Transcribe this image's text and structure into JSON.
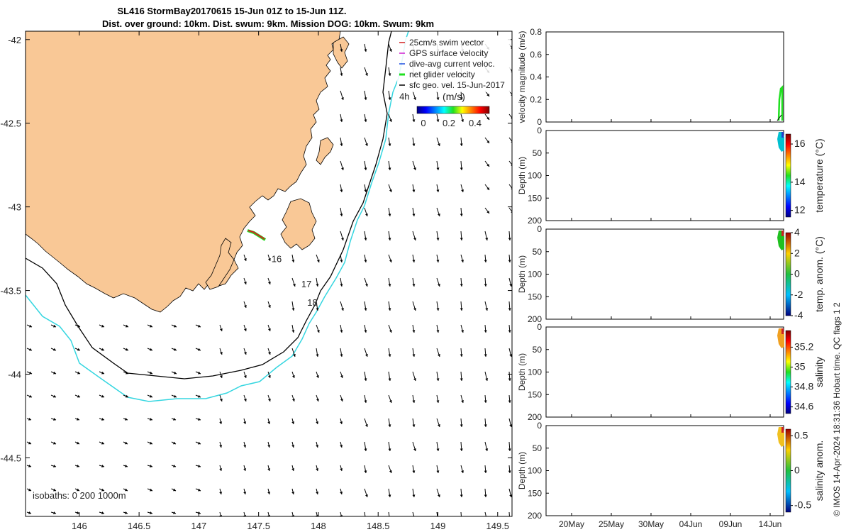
{
  "title": {
    "line1": "SL416 StormBay20170615 15-Jun 01Z to 15-Jun 11Z.",
    "line2": "Dist. over ground: 10km. Dist. swum: 9km. Mission DOG: 10km. Swum: 9km"
  },
  "map": {
    "lon_ticks": [
      "146",
      "146.5",
      "147",
      "147.5",
      "148",
      "148.5",
      "149",
      "149.5"
    ],
    "lon_values": [
      146,
      146.5,
      147,
      147.5,
      148,
      148.5,
      149,
      149.5
    ],
    "lat_ticks": [
      "-42",
      "-42.5",
      "-43",
      "-43.5",
      "-44",
      "-44.5"
    ],
    "lat_values": [
      -42,
      -42.5,
      -43,
      -43.5,
      -44,
      -44.5
    ],
    "xlim": [
      145.55,
      149.62
    ],
    "ylim": [
      -44.85,
      -41.95
    ],
    "isobaths_label": "isobaths: 0   200  1000m",
    "day_labels": [
      {
        "text": "16",
        "lon": 147.65,
        "lat": -43.33
      },
      {
        "text": "17",
        "lon": 147.9,
        "lat": -43.48
      },
      {
        "text": "18",
        "lon": 147.95,
        "lat": -43.59
      },
      {
        "text": "4h",
        "lon": 148.72,
        "lat": -42.36
      }
    ],
    "land_color": "#f9c896",
    "isobath_200_color": "#000000",
    "isobath_1000_color": "#35d6e0",
    "legend": {
      "items": [
        {
          "label": "25cm/s swim vector",
          "color": "#d02020"
        },
        {
          "label": "GPS surface velocity",
          "color": "#d020d0"
        },
        {
          "label": "dive-avg current veloc.",
          "color": "#2050e0"
        },
        {
          "label": "net glider velocity",
          "color": "#20e020"
        },
        {
          "label": "sfc geo. vel. 15-Jun-2017",
          "color": "#000000"
        }
      ],
      "colorbar_title": "(m/s)",
      "colorbar_ticks": [
        "0",
        "0.2",
        "0.4"
      ]
    }
  },
  "panels": {
    "x_ticks": [
      "20May",
      "25May",
      "30May",
      "04Jun",
      "09Jun",
      "14Jun"
    ],
    "velocity": {
      "ylabel": "velocity magnitude (m/s)",
      "y_ticks": [
        "0",
        "0.2",
        "0.4",
        "0.6",
        "0.8"
      ],
      "ylim": [
        0,
        0.8
      ]
    },
    "temperature": {
      "ylabel": "Depth (m)",
      "y_ticks": [
        "0",
        "50",
        "100",
        "150",
        "200"
      ],
      "cbar_label": "temperature (°C)",
      "cbar_ticks": [
        "12",
        "14",
        "16"
      ]
    },
    "temp_anom": {
      "ylabel": "Depth (m)",
      "y_ticks": [
        "0",
        "50",
        "100",
        "150",
        "200"
      ],
      "cbar_label": "temp. anom. (°C)",
      "cbar_ticks": [
        "-4",
        "-2",
        "0",
        "2",
        "4"
      ]
    },
    "salinity": {
      "ylabel": "Depth (m)",
      "y_ticks": [
        "0",
        "50",
        "100",
        "150",
        "200"
      ],
      "cbar_label": "salinity",
      "cbar_ticks": [
        "34.6",
        "34.8",
        "35",
        "35.2"
      ]
    },
    "sal_anom": {
      "ylabel": "Depth (m)",
      "y_ticks": [
        "0",
        "50",
        "100",
        "150",
        "200"
      ],
      "cbar_label": "salinity anom.",
      "cbar_ticks": [
        "-0.5",
        "0",
        "0.5"
      ]
    }
  },
  "side_note": "© IMOS 14-Apr-2024 18:31:36 Hobart time. QC flags 1  2",
  "chart_data": [
    {
      "type": "scatter",
      "title": "SL416 StormBay20170615 15-Jun 01Z to 15-Jun 11Z.",
      "xlabel": "",
      "ylabel": "",
      "xlim": [
        145.55,
        149.62
      ],
      "ylim": [
        -44.85,
        -41.95
      ],
      "series": [
        {
          "name": "net glider velocity",
          "x": [
            147.45,
            147.5,
            147.55,
            147.6
          ],
          "y": [
            -43.12,
            -43.14,
            -43.17,
            -43.2
          ]
        }
      ]
    },
    {
      "type": "line",
      "ylabel": "velocity magnitude (m/s)",
      "ylim": [
        0,
        0.8
      ],
      "x": [
        "20May",
        "25May",
        "30May",
        "04Jun",
        "09Jun",
        "14Jun"
      ]
    },
    {
      "type": "heatmap",
      "ylabel": "Depth (m)",
      "ylim": [
        200,
        0
      ],
      "colorbar": "temperature (°C)",
      "clim": [
        11.6,
        16.6
      ]
    },
    {
      "type": "heatmap",
      "ylabel": "Depth (m)",
      "ylim": [
        200,
        0
      ],
      "colorbar": "temp. anom. (°C)",
      "clim": [
        -4,
        4
      ]
    },
    {
      "type": "heatmap",
      "ylabel": "Depth (m)",
      "ylim": [
        200,
        0
      ],
      "colorbar": "salinity",
      "clim": [
        34.52,
        35.38
      ]
    },
    {
      "type": "heatmap",
      "ylabel": "Depth (m)",
      "ylim": [
        200,
        0
      ],
      "colorbar": "salinity anom.",
      "clim": [
        -0.6,
        0.6
      ]
    }
  ]
}
